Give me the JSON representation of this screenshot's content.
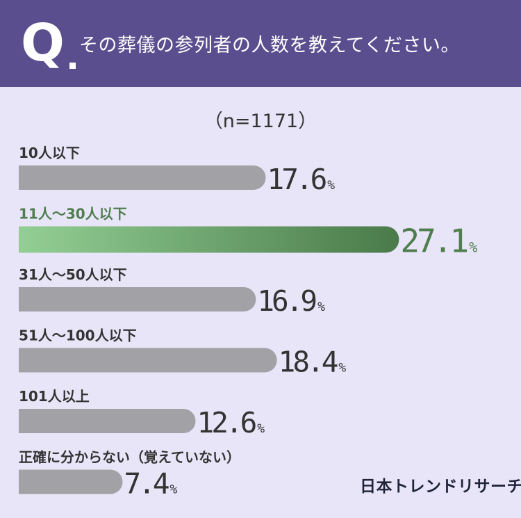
{
  "header": {
    "q_letter": "Q",
    "question": "その葬儀の参列者の人数を教えてください。"
  },
  "sample_size": "（n=1171）",
  "logo_text": "日本トレンドリサーチ",
  "colors": {
    "header_bg": "#5b4e8f",
    "page_bg": "#e9e5f8",
    "bar_gray": "#a1a1a6",
    "highlight_start": "#93cf94",
    "highlight_end": "#4a7a4a",
    "highlight_text": "#4e7d4e",
    "text_dark": "#333333"
  },
  "chart_data": {
    "type": "bar",
    "orientation": "horizontal",
    "categories": [
      "10人以下",
      "11人～30人以下",
      "31人～50人以下",
      "51人～100人以下",
      "101人以上",
      "正確に分からない（覚えていない）"
    ],
    "values": [
      17.6,
      27.1,
      16.9,
      18.4,
      12.6,
      7.4
    ],
    "value_labels": [
      "17.6",
      "27.1",
      "16.9",
      "18.4",
      "12.6",
      "7.4"
    ],
    "unit": "%",
    "highlight_index": 1,
    "grid": false,
    "legend": "none"
  }
}
